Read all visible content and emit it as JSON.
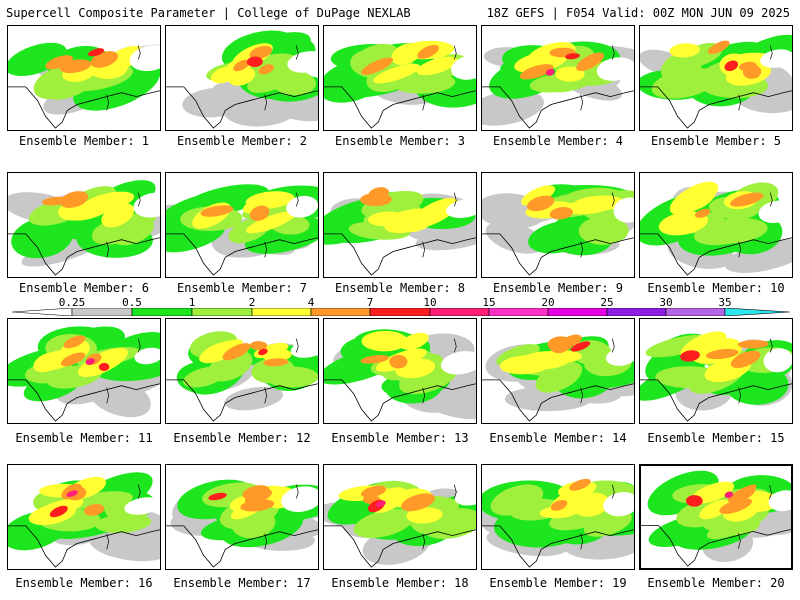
{
  "header": {
    "title_left": "Supercell Composite Parameter | College of DuPage NEXLAB",
    "title_right": "18Z GEFS | F054 Valid: 00Z MON JUN 09 2025"
  },
  "caption_prefix": "Ensemble Member:",
  "members": [
    1,
    2,
    3,
    4,
    5,
    6,
    7,
    8,
    9,
    10,
    11,
    12,
    13,
    14,
    15,
    16,
    17,
    18,
    19,
    20
  ],
  "selected_member": 20,
  "legend": {
    "labels": [
      "0.25",
      "0.5",
      "1",
      "2",
      "4",
      "7",
      "10",
      "15",
      "20",
      "25",
      "30",
      "35"
    ],
    "colors": {
      "below": "#ffffff",
      "0.25-0.5": "#c8c8c8",
      "0.5-1": "#1ee61e",
      "1-2": "#9ef03c",
      "2-4": "#ffff32",
      "4-7": "#ff9a28",
      "7-10": "#ff1e1e",
      "10-15": "#ff1e78",
      "15-20": "#ff32c8",
      "20-25": "#e600e6",
      "25-30": "#8c1ee6",
      "30-35": "#b464e6",
      "above": "#2de6f0"
    }
  },
  "map_colors": {
    "coast": "#000000",
    "boundary": "#000000"
  }
}
